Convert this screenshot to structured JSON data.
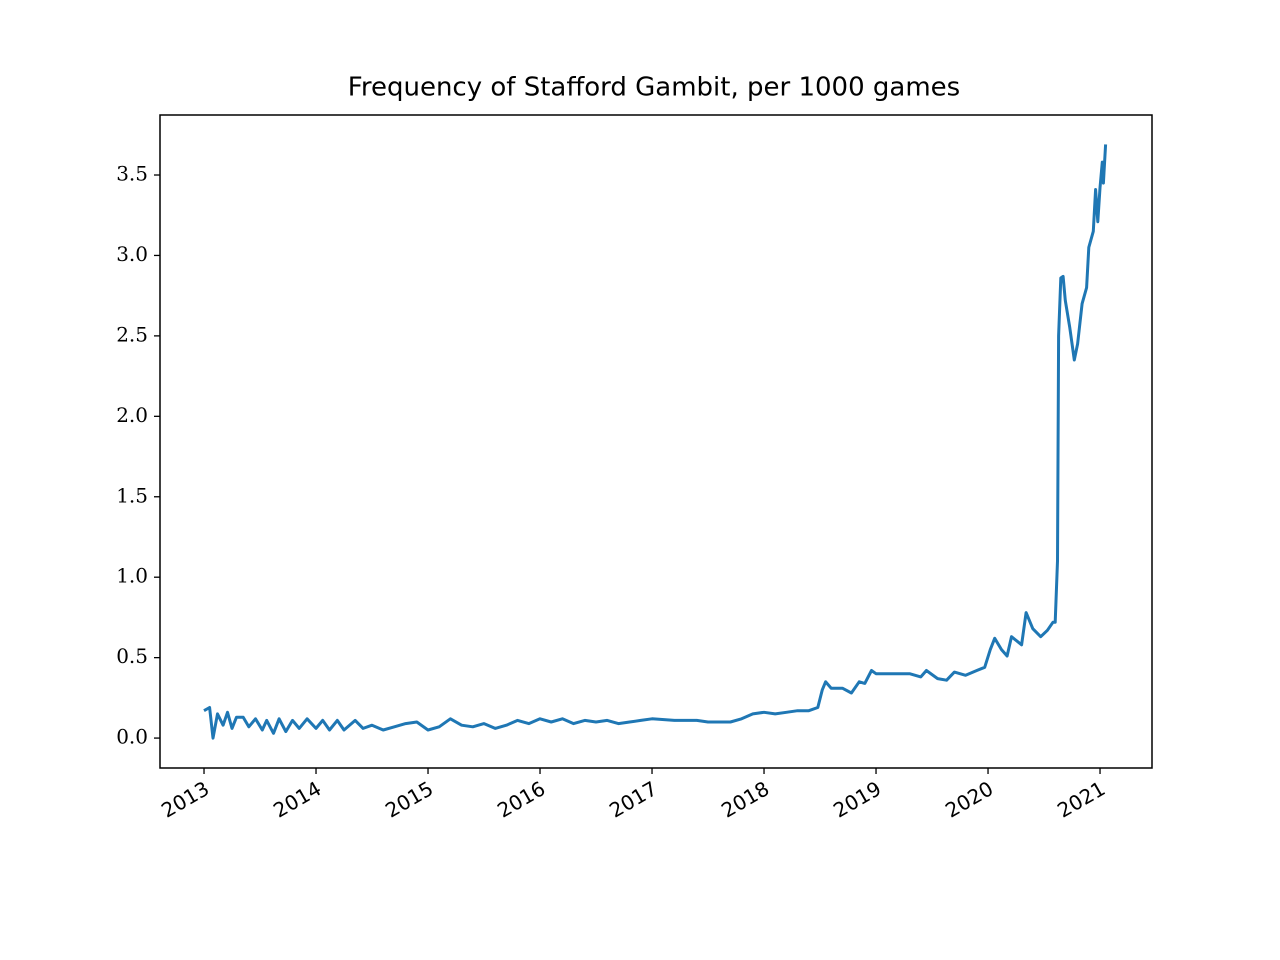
{
  "chart_data": {
    "type": "line",
    "title": "Frequency of Stafford Gambit, per 1000 games",
    "x": [
      2013.0,
      2013.05,
      2013.08,
      2013.12,
      2013.17,
      2013.21,
      2013.25,
      2013.29,
      2013.35,
      2013.4,
      2013.46,
      2013.52,
      2013.56,
      2013.62,
      2013.67,
      2013.73,
      2013.79,
      2013.85,
      2013.92,
      2014.0,
      2014.06,
      2014.12,
      2014.19,
      2014.25,
      2014.35,
      2014.42,
      2014.5,
      2014.6,
      2014.7,
      2014.8,
      2014.9,
      2015.0,
      2015.1,
      2015.2,
      2015.3,
      2015.4,
      2015.5,
      2015.6,
      2015.7,
      2015.8,
      2015.9,
      2016.0,
      2016.1,
      2016.2,
      2016.3,
      2016.4,
      2016.5,
      2016.6,
      2016.7,
      2016.8,
      2016.9,
      2017.0,
      2017.2,
      2017.4,
      2017.5,
      2017.7,
      2017.8,
      2017.9,
      2018.0,
      2018.1,
      2018.2,
      2018.3,
      2018.4,
      2018.48,
      2018.52,
      2018.55,
      2018.6,
      2018.7,
      2018.78,
      2018.85,
      2018.9,
      2018.96,
      2019.0,
      2019.1,
      2019.2,
      2019.3,
      2019.4,
      2019.45,
      2019.55,
      2019.63,
      2019.7,
      2019.8,
      2019.9,
      2019.97,
      2020.02,
      2020.06,
      2020.12,
      2020.17,
      2020.21,
      2020.3,
      2020.34,
      2020.4,
      2020.47,
      2020.53,
      2020.58,
      2020.6,
      2020.62,
      2020.63,
      2020.65,
      2020.67,
      2020.69,
      2020.73,
      2020.77,
      2020.8,
      2020.84,
      2020.88,
      2020.9,
      2020.94,
      2020.96,
      2020.98,
      2021.0,
      2021.02,
      2021.03,
      2021.05
    ],
    "series": [
      {
        "color": "#1f77b4",
        "values": [
          0.17,
          0.19,
          0.0,
          0.15,
          0.08,
          0.16,
          0.06,
          0.13,
          0.13,
          0.07,
          0.12,
          0.05,
          0.11,
          0.03,
          0.12,
          0.04,
          0.11,
          0.06,
          0.12,
          0.06,
          0.11,
          0.05,
          0.11,
          0.05,
          0.11,
          0.06,
          0.08,
          0.05,
          0.07,
          0.09,
          0.1,
          0.05,
          0.07,
          0.12,
          0.08,
          0.07,
          0.09,
          0.06,
          0.08,
          0.11,
          0.09,
          0.12,
          0.1,
          0.12,
          0.09,
          0.11,
          0.1,
          0.11,
          0.09,
          0.1,
          0.11,
          0.12,
          0.11,
          0.11,
          0.1,
          0.1,
          0.12,
          0.15,
          0.16,
          0.15,
          0.16,
          0.17,
          0.17,
          0.19,
          0.3,
          0.35,
          0.31,
          0.31,
          0.28,
          0.35,
          0.34,
          0.42,
          0.4,
          0.4,
          0.4,
          0.4,
          0.38,
          0.42,
          0.37,
          0.36,
          0.41,
          0.39,
          0.42,
          0.44,
          0.55,
          0.62,
          0.55,
          0.51,
          0.63,
          0.58,
          0.78,
          0.68,
          0.63,
          0.67,
          0.72,
          0.72,
          1.1,
          2.5,
          2.86,
          2.87,
          2.72,
          2.55,
          2.35,
          2.45,
          2.7,
          2.8,
          3.05,
          3.15,
          3.41,
          3.21,
          3.42,
          3.58,
          3.45,
          3.69
        ]
      }
    ],
    "xlim": [
      2012.607,
      2021.464
    ],
    "xticks": [
      2013,
      2014,
      2015,
      2016,
      2017,
      2018,
      2019,
      2020,
      2021
    ],
    "ylim": [
      -0.186,
      3.873
    ],
    "yticks": [
      {
        "value": 0,
        "label": "0.0"
      },
      {
        "value": 0.5,
        "label": "0.5"
      },
      {
        "value": 1,
        "label": "1.0"
      },
      {
        "value": 1.5,
        "label": "1.5"
      },
      {
        "value": 2,
        "label": "2.0"
      },
      {
        "value": 2.5,
        "label": "2.5"
      },
      {
        "value": 3,
        "label": "3.0"
      },
      {
        "value": 3.5,
        "label": "3.5"
      }
    ],
    "grid": false
  }
}
